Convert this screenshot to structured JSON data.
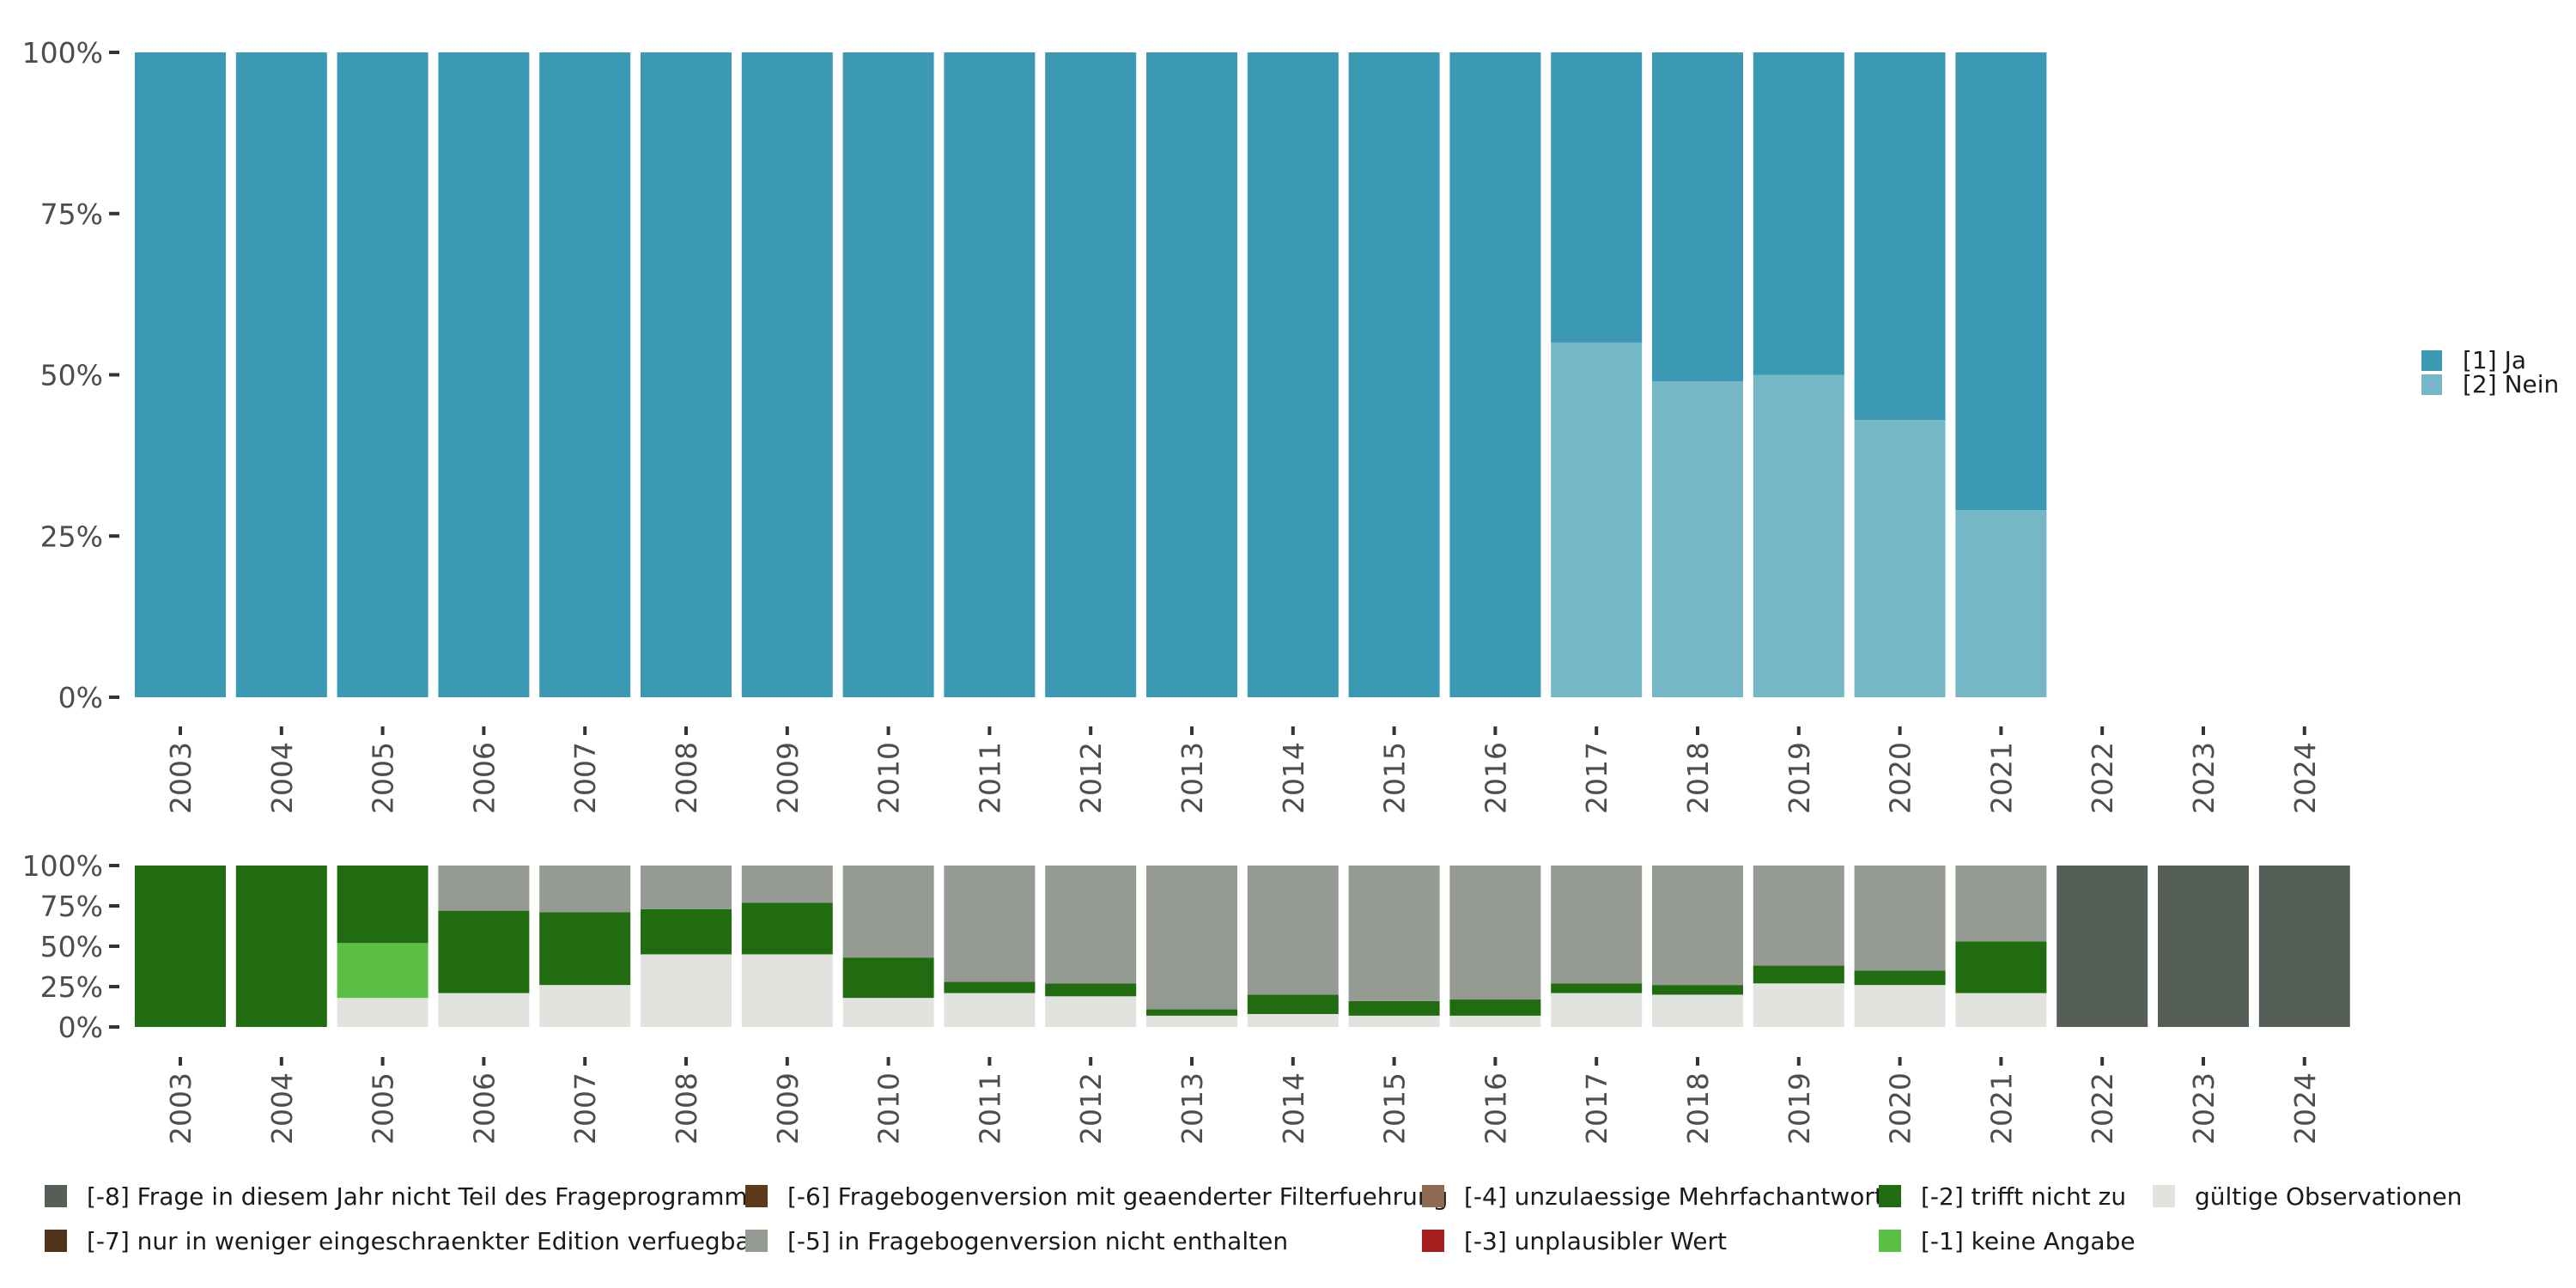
{
  "chart_data": [
    {
      "type": "bar",
      "stacked": true,
      "ylim": [
        0,
        100
      ],
      "y_ticks": [
        "0%",
        "25%",
        "50%",
        "75%",
        "100%"
      ],
      "categories": [
        "2003",
        "2004",
        "2005",
        "2006",
        "2007",
        "2008",
        "2009",
        "2010",
        "2011",
        "2012",
        "2013",
        "2014",
        "2015",
        "2016",
        "2017",
        "2018",
        "2019",
        "2020",
        "2021",
        "2022",
        "2023",
        "2024"
      ],
      "series": [
        {
          "name": "[2] Nein",
          "color": "#76b7c6",
          "values": [
            0,
            0,
            0,
            0,
            0,
            0,
            0,
            0,
            0,
            0,
            0,
            0,
            0,
            0,
            55,
            49,
            50,
            43,
            29,
            null,
            null,
            null
          ]
        },
        {
          "name": "[1] Ja",
          "color": "#3b99b3",
          "values": [
            100,
            100,
            100,
            100,
            100,
            100,
            100,
            100,
            100,
            100,
            100,
            100,
            100,
            100,
            45,
            51,
            50,
            57,
            71,
            null,
            null,
            null
          ]
        }
      ],
      "legend": [
        "[1] Ja",
        "[2] Nein"
      ],
      "legend_position": "right"
    },
    {
      "type": "bar",
      "stacked": true,
      "ylim": [
        0,
        100
      ],
      "y_ticks": [
        "0%",
        "25%",
        "50%",
        "75%",
        "100%"
      ],
      "categories": [
        "2003",
        "2004",
        "2005",
        "2006",
        "2007",
        "2008",
        "2009",
        "2010",
        "2011",
        "2012",
        "2013",
        "2014",
        "2015",
        "2016",
        "2017",
        "2018",
        "2019",
        "2020",
        "2021",
        "2022",
        "2023",
        "2024"
      ],
      "series": [
        {
          "name": "gültige Observationen",
          "color": "#e0e3de",
          "values": [
            0,
            0,
            18,
            21,
            26,
            45,
            45,
            18,
            21,
            19,
            7,
            8,
            7,
            7,
            21,
            20,
            27,
            26,
            21,
            0,
            0,
            0
          ]
        },
        {
          "name": "[-1] keine Angabe",
          "color": "#5bbf45",
          "values": [
            0,
            0,
            34,
            0,
            0,
            0,
            0,
            0,
            0,
            0,
            0,
            0,
            0,
            0,
            0,
            0,
            0,
            0,
            0,
            0,
            0,
            0
          ]
        },
        {
          "name": "[-2] trifft nicht zu",
          "color": "#216b10",
          "values": [
            100,
            100,
            48,
            51,
            45,
            28,
            32,
            25,
            7,
            8,
            4,
            12,
            9,
            10,
            6,
            6,
            11,
            9,
            32,
            0,
            0,
            0
          ]
        },
        {
          "name": "[-5] in Fragebogenversion nicht enthalten",
          "color": "#959a92",
          "values": [
            0,
            0,
            0,
            28,
            29,
            27,
            23,
            57,
            72,
            73,
            89,
            80,
            84,
            83,
            73,
            74,
            62,
            65,
            47,
            0,
            0,
            0
          ]
        },
        {
          "name": "[-8] Frage in diesem Jahr nicht Teil des Frageprogramms",
          "color": "#555e57",
          "values": [
            0,
            0,
            0,
            0,
            0,
            0,
            0,
            0,
            0,
            0,
            0,
            0,
            0,
            0,
            0,
            0,
            0,
            0,
            0,
            100,
            100,
            100
          ]
        }
      ]
    }
  ],
  "legend_bottom": [
    {
      "label": "[-8] Frage in diesem Jahr nicht Teil des Frageprogramms",
      "color": "#555e57"
    },
    {
      "label": "[-7] nur in weniger eingeschraenkter Edition verfuegbar",
      "color": "#4e3219"
    },
    {
      "label": "[-6] Fragebogenversion mit geaenderter Filterfuehrung",
      "color": "#5c3a1a"
    },
    {
      "label": "[-5] in Fragebogenversion nicht enthalten",
      "color": "#959a92"
    },
    {
      "label": "[-4] unzulaessige Mehrfachantwort",
      "color": "#8d6a50"
    },
    {
      "label": "[-3] unplausibler Wert",
      "color": "#a51d1d"
    },
    {
      "label": "[-2] trifft nicht zu",
      "color": "#216b10"
    },
    {
      "label": "[-1] keine Angabe",
      "color": "#5bbf45"
    },
    {
      "label": "gültige Observationen",
      "color": "#e0e3de"
    }
  ]
}
